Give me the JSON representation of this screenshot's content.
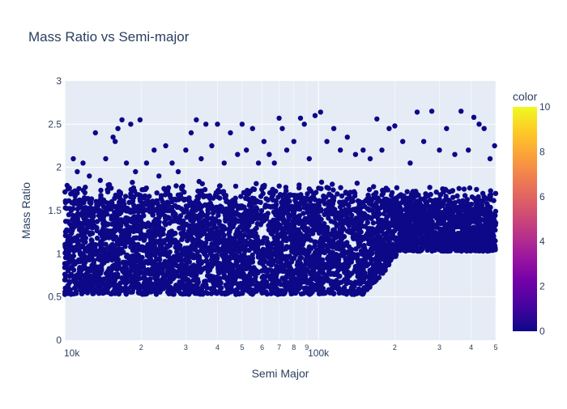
{
  "chart_data": {
    "type": "scatter",
    "title": "Mass Ratio vs Semi-major",
    "xlabel": "Semi Major",
    "ylabel": "Mass Ratio",
    "x_scale": "log",
    "xlim": [
      10000,
      500000
    ],
    "ylim": [
      0,
      3
    ],
    "x_major_ticks": [
      {
        "value": 10000,
        "label": "10k"
      },
      {
        "value": 100000,
        "label": "100k"
      }
    ],
    "x_minor_ticks": [
      {
        "value": 20000,
        "label": "2"
      },
      {
        "value": 30000,
        "label": "3"
      },
      {
        "value": 40000,
        "label": "4"
      },
      {
        "value": 50000,
        "label": "5"
      },
      {
        "value": 60000,
        "label": "6"
      },
      {
        "value": 70000,
        "label": "7"
      },
      {
        "value": 80000,
        "label": "8"
      },
      {
        "value": 90000,
        "label": "9"
      },
      {
        "value": 200000,
        "label": "2"
      },
      {
        "value": 300000,
        "label": "3"
      },
      {
        "value": 400000,
        "label": "4"
      },
      {
        "value": 500000,
        "label": "5"
      }
    ],
    "y_ticks": [
      {
        "value": 0,
        "label": "0"
      },
      {
        "value": 0.5,
        "label": "0.5"
      },
      {
        "value": 1,
        "label": "1"
      },
      {
        "value": 1.5,
        "label": "1.5"
      },
      {
        "value": 2,
        "label": "2"
      },
      {
        "value": 2.5,
        "label": "2.5"
      },
      {
        "value": 3,
        "label": "3"
      }
    ],
    "grid": true,
    "marker_color": "#0d0887",
    "background": "#e5ecf6",
    "colorbar": {
      "title": "color",
      "range": [
        0,
        10
      ],
      "ticks": [
        {
          "value": 0,
          "label": "0"
        },
        {
          "value": 2,
          "label": "2"
        },
        {
          "value": 4,
          "label": "4"
        },
        {
          "value": 6,
          "label": "6"
        },
        {
          "value": 8,
          "label": "8"
        },
        {
          "value": 10,
          "label": "10"
        }
      ],
      "colors": [
        "#0d0887",
        "#46039f",
        "#7201a8",
        "#9c179e",
        "#bd3786",
        "#d8576b",
        "#ed7953",
        "#fb9f3a",
        "#fdca26",
        "#f0f921"
      ]
    },
    "series": [
      {
        "values": [
          [
            10300,
            1.75
          ],
          [
            10800,
            2.1
          ],
          [
            11200,
            1.95
          ],
          [
            11800,
            2.05
          ],
          [
            12500,
            1.9
          ],
          [
            13200,
            2.4
          ],
          [
            13800,
            1.85
          ],
          [
            14500,
            2.1
          ],
          [
            15000,
            1.8
          ],
          [
            15500,
            2.35
          ],
          [
            15800,
            2.3
          ],
          [
            16200,
            2.45
          ],
          [
            16800,
            2.55
          ],
          [
            17500,
            2.05
          ],
          [
            18200,
            2.5
          ],
          [
            19000,
            1.95
          ],
          [
            19800,
            2.55
          ],
          [
            21000,
            2.05
          ],
          [
            22500,
            2.2
          ],
          [
            23500,
            1.9
          ],
          [
            25000,
            2.25
          ],
          [
            26500,
            2.05
          ],
          [
            28000,
            1.95
          ],
          [
            30000,
            2.2
          ],
          [
            31500,
            2.4
          ],
          [
            33000,
            2.55
          ],
          [
            34500,
            2.1
          ],
          [
            36000,
            2.5
          ],
          [
            38000,
            2.25
          ],
          [
            40000,
            2.5
          ],
          [
            42500,
            2.05
          ],
          [
            45000,
            2.4
          ],
          [
            48000,
            2.15
          ],
          [
            50000,
            2.5
          ],
          [
            52000,
            2.2
          ],
          [
            55000,
            2.45
          ],
          [
            58000,
            2.05
          ],
          [
            61000,
            2.3
          ],
          [
            64000,
            2.15
          ],
          [
            67000,
            2.05
          ],
          [
            70000,
            2.57
          ],
          [
            72000,
            2.45
          ],
          [
            75000,
            2.2
          ],
          [
            80000,
            2.3
          ],
          [
            85000,
            2.57
          ],
          [
            88000,
            2.5
          ],
          [
            92000,
            2.1
          ],
          [
            97000,
            2.6
          ],
          [
            102000,
            2.64
          ],
          [
            108000,
            2.3
          ],
          [
            115000,
            2.45
          ],
          [
            122000,
            2.2
          ],
          [
            130000,
            2.35
          ],
          [
            140000,
            2.15
          ],
          [
            150000,
            2.2
          ],
          [
            160000,
            2.1
          ],
          [
            170000,
            2.56
          ],
          [
            178000,
            2.2
          ],
          [
            190000,
            2.45
          ],
          [
            200000,
            2.48
          ],
          [
            215000,
            2.3
          ],
          [
            230000,
            2.05
          ],
          [
            245000,
            2.64
          ],
          [
            260000,
            2.3
          ],
          [
            280000,
            2.65
          ],
          [
            300000,
            2.2
          ],
          [
            320000,
            2.45
          ],
          [
            345000,
            2.15
          ],
          [
            365000,
            2.65
          ],
          [
            390000,
            2.2
          ],
          [
            410000,
            2.58
          ],
          [
            430000,
            2.5
          ],
          [
            450000,
            2.45
          ],
          [
            475000,
            2.1
          ],
          [
            495000,
            2.25
          ]
        ]
      }
    ]
  }
}
